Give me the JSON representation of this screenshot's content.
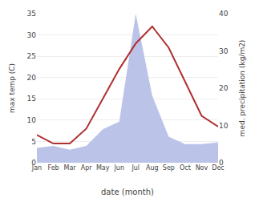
{
  "chart_data": {
    "type": "line",
    "xlabel": "date (month)",
    "ylabel": "max temp (C)",
    "y2label": "med. precipitation (kg/m2)",
    "categories": [
      "Jan",
      "Feb",
      "Mar",
      "Apr",
      "May",
      "Jun",
      "Jul",
      "Aug",
      "Sep",
      "Oct",
      "Nov",
      "Dec"
    ],
    "series": [
      {
        "type": "area",
        "color": "#bbc4e8",
        "axis": "y2",
        "values": [
          4.0,
          4.5,
          3.5,
          4.5,
          9.0,
          11.0,
          40.0,
          18.0,
          7.0,
          5.0,
          5.0,
          5.5
        ]
      },
      {
        "type": "line",
        "color": "#b03030",
        "values": [
          6.5,
          4.5,
          4.5,
          8.0,
          15.0,
          22.0,
          28.0,
          32.0,
          27.0,
          19.0,
          11.0,
          8.5
        ]
      }
    ],
    "ylim": [
      0,
      35
    ],
    "yticks": [
      0,
      5,
      10,
      15,
      20,
      25,
      30,
      35
    ],
    "y2lim": [
      0,
      40
    ],
    "y2ticks": [
      0,
      10,
      20,
      30,
      40
    ],
    "grid": true
  }
}
